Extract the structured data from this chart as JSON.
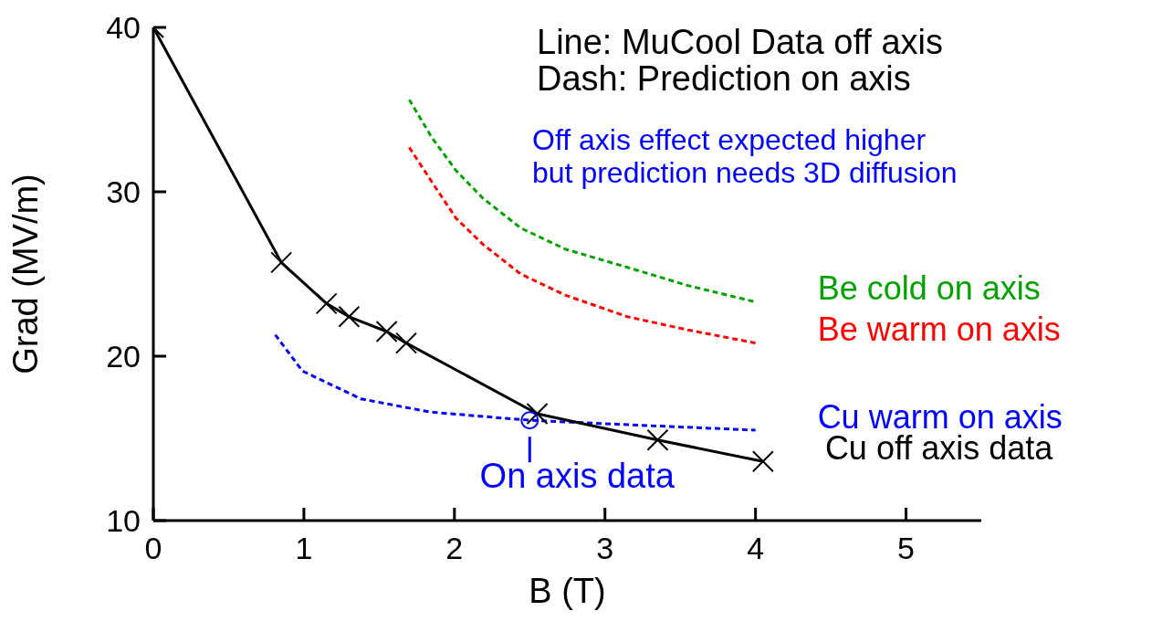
{
  "chart_data": {
    "type": "line",
    "xlabel": "B (T)",
    "ylabel": "Grad (MV/m)",
    "xlim": [
      0,
      5.5
    ],
    "xticks": [
      0,
      1,
      2,
      3,
      4,
      5
    ],
    "ylim": [
      10,
      40
    ],
    "yticks": [
      10,
      20,
      30,
      40
    ],
    "grid": false,
    "legend": false,
    "annotations": [
      "Line: MuCool Data off axis",
      "Dash: Prediction on axis",
      "Off axis effect expected higher",
      "but prediction needs 3D diffusion",
      {
        "text": "On axis data",
        "x": 2.5,
        "y": 16.1
      }
    ],
    "series": [
      {
        "name": "Be cold on axis",
        "color": "#00a000",
        "line_style": "dashed",
        "marker": "none",
        "x": [
          1.7,
          1.85,
          2.01,
          2.19,
          2.44,
          2.74,
          3.15,
          3.55,
          4.0
        ],
        "values": [
          35.6,
          33.3,
          31.3,
          29.6,
          27.8,
          26.5,
          25.4,
          24.3,
          23.3
        ]
      },
      {
        "name": "Be warm on axis",
        "color": "#ff0000",
        "line_style": "dashed",
        "marker": "none",
        "x": [
          1.7,
          1.85,
          2.01,
          2.19,
          2.44,
          2.74,
          3.15,
          3.55,
          4.0
        ],
        "values": [
          32.7,
          30.6,
          28.4,
          26.8,
          25.0,
          23.7,
          22.4,
          21.6,
          20.8
        ]
      },
      {
        "name": "Cu warm on axis",
        "color": "#0000ff",
        "line_style": "dashed",
        "marker": "none",
        "x": [
          0.81,
          0.99,
          1.38,
          1.84,
          2.5,
          3.23,
          4.0
        ],
        "values": [
          21.3,
          19.1,
          17.4,
          16.6,
          16.1,
          15.8,
          15.5
        ]
      },
      {
        "name": "Cu off axis data",
        "color": "#000000",
        "line_style": "solid",
        "marker": "cross",
        "x": [
          0,
          0.85,
          1.15,
          1.3,
          1.55,
          1.68,
          2.55,
          3.35,
          4.05
        ],
        "values": [
          40,
          25.7,
          23.2,
          22.4,
          21.5,
          20.8,
          16.5,
          14.9,
          13.6
        ]
      }
    ]
  }
}
